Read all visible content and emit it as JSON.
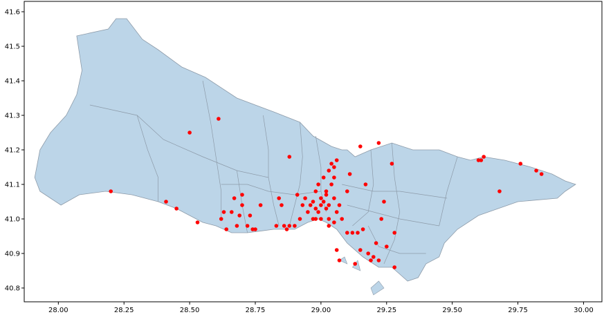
{
  "chart_data": {
    "type": "scatter",
    "title": "",
    "xlabel": "",
    "ylabel": "",
    "xlim": [
      27.87,
      30.07
    ],
    "ylim": [
      40.76,
      41.63
    ],
    "x_ticks": [
      "28.00",
      "28.25",
      "28.50",
      "28.75",
      "29.00",
      "29.25",
      "29.50",
      "29.75",
      "30.00"
    ],
    "x_tick_values": [
      28.0,
      28.25,
      28.5,
      28.75,
      29.0,
      29.25,
      29.5,
      29.75,
      30.0
    ],
    "y_ticks": [
      "40.8",
      "40.9",
      "41.0",
      "41.1",
      "41.2",
      "41.3",
      "41.4",
      "41.5",
      "41.6"
    ],
    "y_tick_values": [
      40.8,
      40.9,
      41.0,
      41.1,
      41.2,
      41.3,
      41.4,
      41.5,
      41.6
    ],
    "grid": false,
    "legend": "none",
    "colors": {
      "land": "#bcd5e8",
      "boundary": "#8c9aa8",
      "point": "#ff0000"
    },
    "background": {
      "name": "istanbul-district-map",
      "outline": [
        [
          28.07,
          41.53
        ],
        [
          28.19,
          41.55
        ],
        [
          28.22,
          41.58
        ],
        [
          28.26,
          41.58
        ],
        [
          28.32,
          41.52
        ],
        [
          28.38,
          41.49
        ],
        [
          28.47,
          41.44
        ],
        [
          28.56,
          41.41
        ],
        [
          28.68,
          41.35
        ],
        [
          28.82,
          41.31
        ],
        [
          28.92,
          41.28
        ],
        [
          28.97,
          41.24
        ],
        [
          29.04,
          41.21
        ],
        [
          29.08,
          41.2
        ],
        [
          29.1,
          41.2
        ],
        [
          29.13,
          41.18
        ],
        [
          29.19,
          41.2
        ],
        [
          29.27,
          41.22
        ],
        [
          29.35,
          41.2
        ],
        [
          29.45,
          41.2
        ],
        [
          29.52,
          41.18
        ],
        [
          29.57,
          41.17
        ],
        [
          29.62,
          41.18
        ],
        [
          29.7,
          41.17
        ],
        [
          29.8,
          41.15
        ],
        [
          29.88,
          41.13
        ],
        [
          29.93,
          41.11
        ],
        [
          29.97,
          41.1
        ],
        [
          29.93,
          41.08
        ],
        [
          29.9,
          41.06
        ],
        [
          29.75,
          41.05
        ],
        [
          29.6,
          41.01
        ],
        [
          29.52,
          40.97
        ],
        [
          29.47,
          40.93
        ],
        [
          29.45,
          40.89
        ],
        [
          29.4,
          40.87
        ],
        [
          29.37,
          40.83
        ],
        [
          29.33,
          40.82
        ],
        [
          29.3,
          40.84
        ],
        [
          29.27,
          40.86
        ],
        [
          29.22,
          40.86
        ],
        [
          29.16,
          40.89
        ],
        [
          29.1,
          40.93
        ],
        [
          29.06,
          40.97
        ],
        [
          29.02,
          40.99
        ],
        [
          28.99,
          41.0
        ],
        [
          28.95,
          40.99
        ],
        [
          28.9,
          40.97
        ],
        [
          28.82,
          40.97
        ],
        [
          28.72,
          40.96
        ],
        [
          28.66,
          40.96
        ],
        [
          28.6,
          40.98
        ],
        [
          28.55,
          40.99
        ],
        [
          28.45,
          41.03
        ],
        [
          28.38,
          41.05
        ],
        [
          28.28,
          41.07
        ],
        [
          28.18,
          41.08
        ],
        [
          28.08,
          41.07
        ],
        [
          28.01,
          41.04
        ],
        [
          27.97,
          41.06
        ],
        [
          27.93,
          41.08
        ],
        [
          27.91,
          41.12
        ],
        [
          27.93,
          41.2
        ],
        [
          27.97,
          41.25
        ],
        [
          28.03,
          41.3
        ],
        [
          28.07,
          41.36
        ],
        [
          28.09,
          41.43
        ],
        [
          28.08,
          41.48
        ],
        [
          28.07,
          41.53
        ]
      ],
      "islands": [
        [
          [
            29.07,
            40.88
          ],
          [
            29.1,
            40.87
          ],
          [
            29.09,
            40.89
          ]
        ],
        [
          [
            29.12,
            40.86
          ],
          [
            29.15,
            40.85
          ],
          [
            29.14,
            40.88
          ]
        ],
        [
          [
            29.2,
            40.78
          ],
          [
            29.24,
            40.8
          ],
          [
            29.22,
            40.82
          ],
          [
            29.19,
            40.8
          ]
        ]
      ],
      "districts": [
        [
          [
            28.12,
            41.33
          ],
          [
            28.3,
            41.3
          ],
          [
            28.4,
            41.23
          ],
          [
            28.55,
            41.18
          ],
          [
            28.68,
            41.14
          ],
          [
            28.8,
            41.12
          ]
        ],
        [
          [
            28.3,
            41.3
          ],
          [
            28.34,
            41.2
          ],
          [
            28.38,
            41.12
          ],
          [
            28.38,
            41.05
          ]
        ],
        [
          [
            28.55,
            41.4
          ],
          [
            28.58,
            41.28
          ],
          [
            28.6,
            41.18
          ],
          [
            28.62,
            41.08
          ],
          [
            28.62,
            41.0
          ]
        ],
        [
          [
            28.78,
            41.3
          ],
          [
            28.8,
            41.2
          ],
          [
            28.8,
            41.12
          ],
          [
            28.82,
            41.04
          ],
          [
            28.84,
            40.98
          ]
        ],
        [
          [
            28.92,
            41.28
          ],
          [
            28.93,
            41.18
          ],
          [
            28.92,
            41.1
          ],
          [
            28.9,
            41.04
          ],
          [
            28.88,
            40.98
          ]
        ],
        [
          [
            28.98,
            41.24
          ],
          [
            29.0,
            41.15
          ],
          [
            29.0,
            41.08
          ],
          [
            29.02,
            41.02
          ]
        ],
        [
          [
            28.62,
            41.1
          ],
          [
            28.72,
            41.1
          ],
          [
            28.8,
            41.08
          ],
          [
            28.9,
            41.07
          ],
          [
            29.0,
            41.08
          ]
        ],
        [
          [
            28.68,
            41.14
          ],
          [
            28.7,
            41.04
          ],
          [
            28.72,
            40.96
          ]
        ],
        [
          [
            29.19,
            41.2
          ],
          [
            29.2,
            41.1
          ],
          [
            29.18,
            41.02
          ],
          [
            29.12,
            40.98
          ]
        ],
        [
          [
            29.27,
            41.22
          ],
          [
            29.28,
            41.12
          ],
          [
            29.3,
            41.02
          ],
          [
            29.28,
            40.94
          ],
          [
            29.24,
            40.87
          ]
        ],
        [
          [
            29.52,
            41.18
          ],
          [
            29.48,
            41.08
          ],
          [
            29.45,
            40.98
          ]
        ],
        [
          [
            29.08,
            41.1
          ],
          [
            29.2,
            41.08
          ],
          [
            29.3,
            41.08
          ],
          [
            29.48,
            41.06
          ]
        ],
        [
          [
            29.1,
            41.04
          ],
          [
            29.2,
            41.02
          ],
          [
            29.3,
            41.0
          ],
          [
            29.45,
            40.98
          ]
        ],
        [
          [
            29.18,
            40.98
          ],
          [
            29.22,
            40.92
          ],
          [
            29.3,
            40.9
          ],
          [
            29.4,
            40.9
          ]
        ]
      ]
    },
    "points": [
      [
        28.2,
        41.08
      ],
      [
        28.41,
        41.05
      ],
      [
        28.45,
        41.03
      ],
      [
        28.53,
        40.99
      ],
      [
        28.5,
        41.25
      ],
      [
        28.61,
        41.29
      ],
      [
        28.63,
        41.02
      ],
      [
        28.62,
        41.0
      ],
      [
        28.64,
        40.97
      ],
      [
        28.66,
        41.02
      ],
      [
        28.67,
        41.06
      ],
      [
        28.68,
        40.98
      ],
      [
        28.69,
        41.01
      ],
      [
        28.7,
        41.04
      ],
      [
        28.7,
        41.07
      ],
      [
        28.72,
        40.98
      ],
      [
        28.73,
        41.01
      ],
      [
        28.74,
        40.97
      ],
      [
        28.75,
        40.97
      ],
      [
        28.77,
        41.04
      ],
      [
        28.83,
        40.98
      ],
      [
        28.84,
        41.06
      ],
      [
        28.85,
        41.04
      ],
      [
        28.86,
        40.98
      ],
      [
        28.87,
        40.97
      ],
      [
        28.88,
        40.98
      ],
      [
        28.88,
        41.18
      ],
      [
        28.9,
        40.98
      ],
      [
        28.91,
        41.07
      ],
      [
        28.92,
        41.0
      ],
      [
        28.93,
        41.04
      ],
      [
        28.94,
        41.06
      ],
      [
        28.95,
        41.02
      ],
      [
        28.96,
        41.04
      ],
      [
        28.97,
        41.0
      ],
      [
        28.97,
        41.05
      ],
      [
        28.98,
        41.08
      ],
      [
        28.98,
        41.03
      ],
      [
        28.99,
        41.1
      ],
      [
        28.99,
        41.02
      ],
      [
        29.0,
        41.04
      ],
      [
        29.0,
        41.06
      ],
      [
        29.01,
        41.05
      ],
      [
        29.01,
        41.12
      ],
      [
        29.02,
        41.03
      ],
      [
        29.02,
        41.08
      ],
      [
        29.03,
        41.0
      ],
      [
        29.03,
        41.14
      ],
      [
        29.04,
        41.16
      ],
      [
        29.04,
        41.1
      ],
      [
        29.05,
        41.15
      ],
      [
        29.05,
        41.06
      ],
      [
        29.06,
        41.17
      ],
      [
        29.06,
        41.02
      ],
      [
        29.07,
        41.04
      ],
      [
        29.03,
        40.98
      ],
      [
        29.05,
        40.99
      ],
      [
        29.06,
        40.91
      ],
      [
        29.07,
        40.88
      ],
      [
        29.1,
        41.08
      ],
      [
        29.11,
        41.13
      ],
      [
        29.12,
        40.96
      ],
      [
        29.13,
        40.87
      ],
      [
        29.14,
        40.96
      ],
      [
        29.15,
        40.91
      ],
      [
        29.16,
        40.97
      ],
      [
        29.17,
        41.1
      ],
      [
        29.18,
        40.9
      ],
      [
        29.19,
        40.88
      ],
      [
        29.2,
        40.89
      ],
      [
        29.21,
        40.93
      ],
      [
        29.22,
        40.88
      ],
      [
        29.23,
        41.0
      ],
      [
        29.24,
        41.05
      ],
      [
        29.25,
        40.92
      ],
      [
        29.27,
        41.16
      ],
      [
        29.28,
        40.96
      ],
      [
        29.28,
        40.86
      ],
      [
        29.15,
        41.21
      ],
      [
        29.22,
        41.22
      ],
      [
        29.6,
        41.17
      ],
      [
        29.61,
        41.17
      ],
      [
        29.62,
        41.18
      ],
      [
        29.68,
        41.08
      ],
      [
        29.76,
        41.16
      ],
      [
        29.82,
        41.14
      ],
      [
        29.84,
        41.13
      ],
      [
        29.08,
        41.0
      ],
      [
        29.1,
        40.96
      ],
      [
        28.98,
        41.0
      ],
      [
        29.0,
        41.0
      ],
      [
        29.02,
        41.07
      ],
      [
        29.05,
        41.12
      ],
      [
        29.03,
        41.04
      ]
    ]
  }
}
